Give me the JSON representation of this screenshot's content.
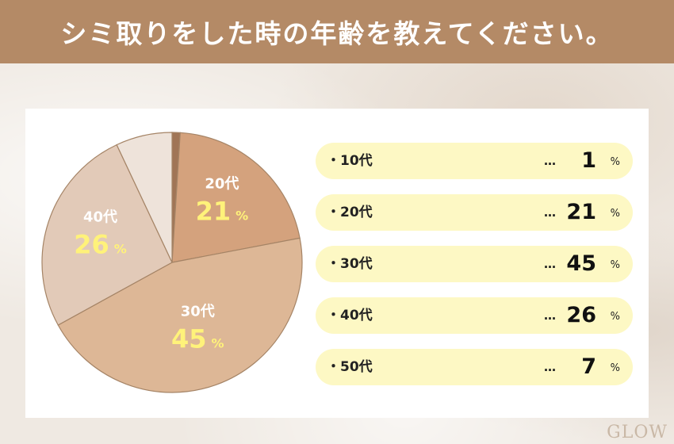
{
  "header": {
    "title": "シミ取りをした時の年齢を教えてください。"
  },
  "chart_data": {
    "type": "pie",
    "categories": [
      "10代",
      "20代",
      "30代",
      "40代",
      "50代"
    ],
    "values": [
      1,
      21,
      45,
      26,
      7
    ],
    "unit": "%",
    "colors": [
      "#a07556",
      "#d4a27d",
      "#ddb796",
      "#e2cab8",
      "#eee3da"
    ],
    "slice_labels_shown": [
      "20代",
      "30代",
      "40代"
    ]
  },
  "legend": {
    "bullet": "・",
    "dots": "…",
    "unit": "%",
    "items": [
      {
        "label": "10代",
        "value": "1"
      },
      {
        "label": "20代",
        "value": "21"
      },
      {
        "label": "30代",
        "value": "45"
      },
      {
        "label": "40代",
        "value": "26"
      },
      {
        "label": "50代",
        "value": "7"
      }
    ]
  },
  "logo": {
    "text": "GLOW"
  },
  "colors": {
    "header_bg": "#b48a66",
    "legend_bg": "#fdf8c4",
    "percent_text": "#fff27a"
  }
}
